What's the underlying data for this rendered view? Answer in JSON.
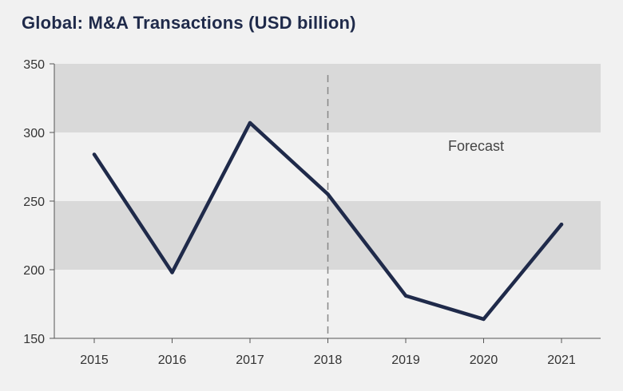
{
  "chart_data": {
    "type": "line",
    "title": "Global: M&A Transactions (USD billion)",
    "x": [
      "2015",
      "2016",
      "2017",
      "2018",
      "2019",
      "2020",
      "2021"
    ],
    "series": [
      {
        "values": [
          284,
          198,
          307,
          255,
          181,
          164,
          233
        ]
      }
    ],
    "ylim": [
      150,
      350
    ],
    "yticks": [
      150,
      200,
      250,
      300,
      350
    ],
    "shaded_bands": [
      [
        200,
        250
      ],
      [
        300,
        350
      ]
    ],
    "forecast_start": "2018",
    "annotations": [
      {
        "text": "Forecast"
      }
    ],
    "colors": {
      "line": "#1f2a4a",
      "band": "#d9d9d9",
      "background": "#f1f1f1",
      "divider": "#888888"
    },
    "grid": false,
    "legend": "none"
  }
}
